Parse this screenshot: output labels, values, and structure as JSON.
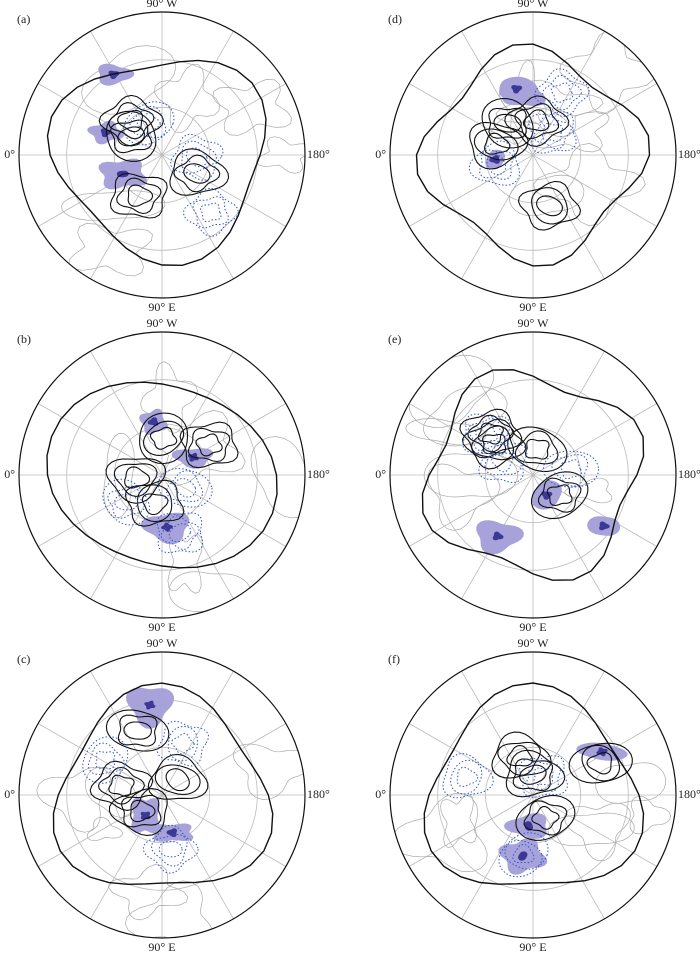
{
  "panels": [
    {
      "label": "(a)",
      "top": "90° W",
      "bottom": "90° E",
      "left": "0°",
      "right": "180°"
    },
    {
      "label": "(b)",
      "top": "90° W",
      "bottom": "90° E",
      "left": "0°",
      "right": "180°"
    },
    {
      "label": "(c)",
      "top": "90° W",
      "bottom": "90° E",
      "left": "0°",
      "right": "180°"
    },
    {
      "label": "(d)",
      "top": "90° W",
      "bottom": "90° E",
      "left": "0°",
      "right": "180°"
    },
    {
      "label": "(e)",
      "top": "90° W",
      "bottom": "90° E",
      "left": "0°",
      "right": "180°"
    },
    {
      "label": "(f)",
      "top": "90° W",
      "bottom": "90° E",
      "left": "0°",
      "right": "180°"
    }
  ]
}
